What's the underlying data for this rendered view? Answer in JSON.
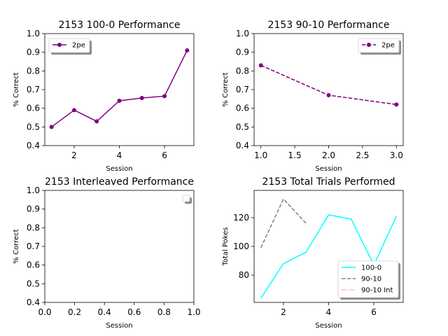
{
  "chart_data": [
    {
      "type": "line",
      "title": "2153 100-0 Performance",
      "xlabel": "Session",
      "ylabel": "% Correct",
      "xlim": [
        0.7,
        7.3
      ],
      "ylim": [
        0.4,
        1.0
      ],
      "xticks": [
        2,
        4,
        6
      ],
      "xtick_labels": [
        "2",
        "4",
        "6"
      ],
      "yticks": [
        0.4,
        0.5,
        0.6,
        0.7,
        0.8,
        0.9,
        1.0
      ],
      "ytick_labels": [
        "0.4",
        "0.5",
        "0.6",
        "0.7",
        "0.8",
        "0.9",
        "1.0"
      ],
      "legend_position": "top-left",
      "series": [
        {
          "name": "2pe",
          "color": "#800080",
          "dash": "solid",
          "marker": "circle",
          "x": [
            1,
            2,
            3,
            4,
            5,
            6,
            7
          ],
          "y": [
            0.5,
            0.59,
            0.53,
            0.64,
            0.655,
            0.665,
            0.91
          ]
        }
      ]
    },
    {
      "type": "line",
      "title": "2153 90-10 Performance",
      "xlabel": "Session",
      "ylabel": "% Correct",
      "xlim": [
        0.9,
        3.1
      ],
      "ylim": [
        0.4,
        1.0
      ],
      "xticks": [
        1.0,
        1.5,
        2.0,
        2.5,
        3.0
      ],
      "xtick_labels": [
        "1.0",
        "1.5",
        "2.0",
        "2.5",
        "3.0"
      ],
      "yticks": [
        0.4,
        0.5,
        0.6,
        0.7,
        0.8,
        0.9,
        1.0
      ],
      "ytick_labels": [
        "0.4",
        "0.5",
        "0.6",
        "0.7",
        "0.8",
        "0.9",
        "1.0"
      ],
      "legend_position": "top-right",
      "series": [
        {
          "name": "2pe",
          "color": "#800080",
          "dash": "dashed",
          "marker": "circle",
          "x": [
            1,
            2,
            3
          ],
          "y": [
            0.83,
            0.67,
            0.62
          ]
        }
      ]
    },
    {
      "type": "line",
      "title": "2153 Interleaved Performance",
      "xlabel": "Session",
      "ylabel": "% Correct",
      "xlim": [
        0.0,
        1.0
      ],
      "ylim": [
        0.4,
        1.0
      ],
      "xticks": [
        0.0,
        0.2,
        0.4,
        0.6,
        0.8,
        1.0
      ],
      "xtick_labels": [
        "0.0",
        "0.2",
        "0.4",
        "0.6",
        "0.8",
        "1.0"
      ],
      "yticks": [
        0.4,
        0.5,
        0.6,
        0.7,
        0.8,
        0.9,
        1.0
      ],
      "ytick_labels": [
        "0.4",
        "0.5",
        "0.6",
        "0.7",
        "0.8",
        "0.9",
        "1.0"
      ],
      "legend_position": "top-right",
      "series": []
    },
    {
      "type": "line",
      "title": "2153 Total Trials Performed",
      "xlabel": "Session",
      "ylabel": "Total Pokes",
      "xlim": [
        0.7,
        7.3
      ],
      "ylim": [
        61,
        139
      ],
      "xticks": [
        2,
        4,
        6
      ],
      "xtick_labels": [
        "2",
        "4",
        "6"
      ],
      "yticks": [
        80,
        100,
        120
      ],
      "ytick_labels": [
        "80",
        "100",
        "120"
      ],
      "legend_position": "lower-right",
      "series": [
        {
          "name": "100-0",
          "color": "#00ffff",
          "dash": "solid",
          "marker": "none",
          "x": [
            1,
            2,
            3,
            4,
            5,
            6,
            7
          ],
          "y": [
            64,
            88,
            96,
            122,
            119,
            87,
            121
          ]
        },
        {
          "name": "90-10",
          "color": "#808080",
          "dash": "dashed",
          "marker": "none",
          "x": [
            1,
            2,
            3
          ],
          "y": [
            99,
            133,
            116
          ]
        },
        {
          "name": "90-10 Int",
          "color": "#ffb6c1",
          "dash": "dashdot",
          "marker": "none",
          "x": [],
          "y": []
        }
      ]
    }
  ]
}
